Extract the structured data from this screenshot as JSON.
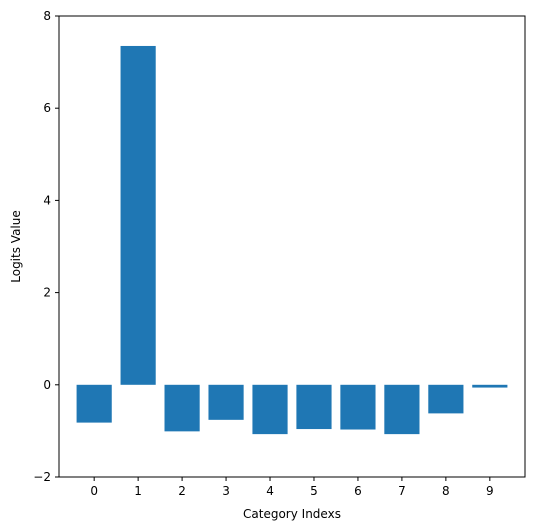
{
  "chart_data": {
    "type": "bar",
    "title": "",
    "xlabel": "Category Indexs",
    "ylabel": "Logits Value",
    "categories": [
      "0",
      "1",
      "2",
      "3",
      "4",
      "5",
      "6",
      "7",
      "8",
      "9"
    ],
    "values": [
      -0.82,
      7.35,
      -1.01,
      -0.76,
      -1.07,
      -0.96,
      -0.97,
      -1.07,
      -0.62,
      -0.06
    ],
    "ylim": [
      -2,
      8
    ],
    "yticks": [
      "−2",
      "0",
      "2",
      "4",
      "6",
      "8"
    ],
    "ytick_values": [
      -2,
      0,
      2,
      4,
      6,
      8
    ],
    "grid": false,
    "legend": "none",
    "bar_color": "#1f77b4"
  }
}
